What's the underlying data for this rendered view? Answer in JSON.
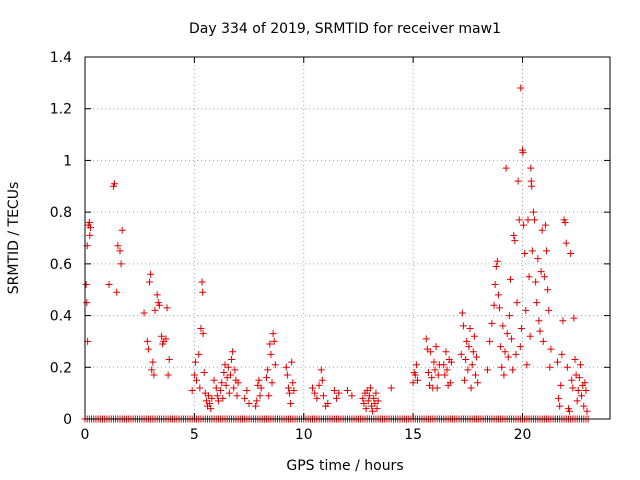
{
  "chart_data": {
    "type": "scatter",
    "title": "Day 334 of 2019, SRMTID for receiver maw1",
    "xlabel": "GPS time / hours",
    "ylabel": "SRMTID / TECUs",
    "xlim": [
      0,
      24
    ],
    "ylim": [
      0,
      1.4
    ],
    "x_ticks": [
      0,
      5,
      10,
      15,
      20
    ],
    "y_ticks": [
      0,
      0.2,
      0.4,
      0.6,
      0.8,
      1,
      1.2,
      1.4
    ],
    "x_tick_labels": [
      "0",
      "5",
      "10",
      "15",
      "20"
    ],
    "y_tick_labels": [
      "0",
      "0.2",
      "0.4",
      "0.6",
      "0.8",
      "1",
      "1.2",
      "1.4"
    ],
    "grid": true,
    "marker": "+",
    "series": [
      {
        "name": "SRMTID",
        "color": "#e00000",
        "points": [
          [
            0.05,
            0.52
          ],
          [
            0.08,
            0.45
          ],
          [
            0.1,
            0.67
          ],
          [
            0.12,
            0.3
          ],
          [
            0.15,
            0.75
          ],
          [
            0.2,
            0.76
          ],
          [
            0.22,
            0.71
          ],
          [
            0.25,
            0.74
          ],
          [
            1.1,
            0.52
          ],
          [
            1.3,
            0.9
          ],
          [
            1.35,
            0.91
          ],
          [
            1.45,
            0.49
          ],
          [
            1.5,
            0.67
          ],
          [
            1.6,
            0.65
          ],
          [
            1.65,
            0.6
          ],
          [
            1.7,
            0.73
          ],
          [
            2.7,
            0.41
          ],
          [
            2.85,
            0.3
          ],
          [
            2.9,
            0.27
          ],
          [
            2.95,
            0.53
          ],
          [
            3.0,
            0.56
          ],
          [
            3.05,
            0.19
          ],
          [
            3.1,
            0.22
          ],
          [
            3.15,
            0.17
          ],
          [
            3.2,
            0.42
          ],
          [
            3.3,
            0.48
          ],
          [
            3.35,
            0.45
          ],
          [
            3.4,
            0.44
          ],
          [
            3.5,
            0.32
          ],
          [
            3.55,
            0.29
          ],
          [
            3.6,
            0.3
          ],
          [
            3.7,
            0.31
          ],
          [
            3.75,
            0.43
          ],
          [
            3.8,
            0.17
          ],
          [
            3.85,
            0.23
          ],
          [
            4.9,
            0.11
          ],
          [
            5.0,
            0.17
          ],
          [
            5.05,
            0.22
          ],
          [
            5.1,
            0.15
          ],
          [
            5.2,
            0.25
          ],
          [
            5.25,
            0.12
          ],
          [
            5.3,
            0.35
          ],
          [
            5.35,
            0.53
          ],
          [
            5.38,
            0.49
          ],
          [
            5.4,
            0.33
          ],
          [
            5.45,
            0.18
          ],
          [
            5.5,
            0.1
          ],
          [
            5.55,
            0.07
          ],
          [
            5.6,
            0.05
          ],
          [
            5.65,
            0.09
          ],
          [
            5.7,
            0.06
          ],
          [
            5.75,
            0.04
          ],
          [
            5.8,
            0.08
          ],
          [
            5.9,
            0.15
          ],
          [
            6.0,
            0.12
          ],
          [
            6.05,
            0.09
          ],
          [
            6.1,
            0.07
          ],
          [
            6.2,
            0.11
          ],
          [
            6.25,
            0.14
          ],
          [
            6.3,
            0.08
          ],
          [
            6.35,
            0.18
          ],
          [
            6.4,
            0.21
          ],
          [
            6.45,
            0.13
          ],
          [
            6.5,
            0.16
          ],
          [
            6.55,
            0.2
          ],
          [
            6.6,
            0.1
          ],
          [
            6.65,
            0.17
          ],
          [
            6.7,
            0.23
          ],
          [
            6.75,
            0.26
          ],
          [
            6.8,
            0.12
          ],
          [
            6.85,
            0.19
          ],
          [
            6.9,
            0.15
          ],
          [
            6.95,
            0.09
          ],
          [
            7.0,
            0.14
          ],
          [
            7.3,
            0.08
          ],
          [
            7.4,
            0.11
          ],
          [
            7.5,
            0.06
          ],
          [
            7.8,
            0.05
          ],
          [
            7.85,
            0.07
          ],
          [
            7.9,
            0.13
          ],
          [
            7.95,
            0.15
          ],
          [
            8.0,
            0.09
          ],
          [
            8.05,
            0.12
          ],
          [
            8.3,
            0.16
          ],
          [
            8.35,
            0.19
          ],
          [
            8.4,
            0.09
          ],
          [
            8.45,
            0.29
          ],
          [
            8.5,
            0.25
          ],
          [
            8.55,
            0.14
          ],
          [
            8.6,
            0.33
          ],
          [
            8.65,
            0.3
          ],
          [
            8.7,
            0.21
          ],
          [
            9.2,
            0.2
          ],
          [
            9.25,
            0.17
          ],
          [
            9.3,
            0.12
          ],
          [
            9.35,
            0.1
          ],
          [
            9.4,
            0.06
          ],
          [
            9.45,
            0.22
          ],
          [
            9.5,
            0.14
          ],
          [
            9.55,
            0.11
          ],
          [
            10.4,
            0.12
          ],
          [
            10.5,
            0.1
          ],
          [
            10.6,
            0.08
          ],
          [
            10.7,
            0.13
          ],
          [
            10.8,
            0.19
          ],
          [
            10.85,
            0.15
          ],
          [
            10.9,
            0.09
          ],
          [
            11.0,
            0.05
          ],
          [
            11.1,
            0.06
          ],
          [
            11.4,
            0.11
          ],
          [
            11.5,
            0.08
          ],
          [
            11.6,
            0.1
          ],
          [
            12.0,
            0.11
          ],
          [
            12.2,
            0.09
          ],
          [
            12.7,
            0.08
          ],
          [
            12.75,
            0.06
          ],
          [
            12.8,
            0.1
          ],
          [
            12.85,
            0.04
          ],
          [
            12.9,
            0.11
          ],
          [
            12.95,
            0.07
          ],
          [
            13.0,
            0.09
          ],
          [
            13.05,
            0.12
          ],
          [
            13.1,
            0.05
          ],
          [
            13.15,
            0.03
          ],
          [
            13.2,
            0.08
          ],
          [
            13.25,
            0.06
          ],
          [
            13.3,
            0.1
          ],
          [
            13.35,
            0.04
          ],
          [
            13.4,
            0.07
          ],
          [
            14.0,
            0.12
          ],
          [
            15.0,
            0.14
          ],
          [
            15.05,
            0.18
          ],
          [
            15.1,
            0.17
          ],
          [
            15.15,
            0.21
          ],
          [
            15.2,
            0.15
          ],
          [
            15.6,
            0.31
          ],
          [
            15.65,
            0.27
          ],
          [
            15.7,
            0.18
          ],
          [
            15.75,
            0.13
          ],
          [
            15.8,
            0.26
          ],
          [
            15.85,
            0.16
          ],
          [
            15.9,
            0.12
          ],
          [
            15.95,
            0.22
          ],
          [
            16.0,
            0.19
          ],
          [
            16.05,
            0.28
          ],
          [
            16.1,
            0.12
          ],
          [
            16.15,
            0.17
          ],
          [
            16.2,
            0.21
          ],
          [
            16.4,
            0.21
          ],
          [
            16.45,
            0.17
          ],
          [
            16.5,
            0.26
          ],
          [
            16.55,
            0.19
          ],
          [
            16.6,
            0.13
          ],
          [
            16.65,
            0.23
          ],
          [
            16.7,
            0.14
          ],
          [
            16.75,
            0.22
          ],
          [
            17.2,
            0.25
          ],
          [
            17.25,
            0.41
          ],
          [
            17.3,
            0.36
          ],
          [
            17.35,
            0.15
          ],
          [
            17.4,
            0.23
          ],
          [
            17.45,
            0.3
          ],
          [
            17.5,
            0.19
          ],
          [
            17.55,
            0.28
          ],
          [
            17.6,
            0.35
          ],
          [
            17.65,
            0.12
          ],
          [
            17.7,
            0.21
          ],
          [
            17.75,
            0.26
          ],
          [
            17.8,
            0.32
          ],
          [
            17.85,
            0.17
          ],
          [
            17.9,
            0.24
          ],
          [
            17.95,
            0.14
          ],
          [
            18.4,
            0.19
          ],
          [
            18.5,
            0.3
          ],
          [
            18.6,
            0.37
          ],
          [
            18.7,
            0.44
          ],
          [
            18.75,
            0.52
          ],
          [
            18.8,
            0.59
          ],
          [
            18.85,
            0.61
          ],
          [
            18.9,
            0.48
          ],
          [
            18.95,
            0.43
          ],
          [
            19.0,
            0.28
          ],
          [
            19.05,
            0.2
          ],
          [
            19.1,
            0.36
          ],
          [
            19.15,
            0.17
          ],
          [
            19.2,
            0.26
          ],
          [
            19.25,
            0.97
          ],
          [
            19.3,
            0.33
          ],
          [
            19.35,
            0.24
          ],
          [
            19.4,
            0.4
          ],
          [
            19.45,
            0.54
          ],
          [
            19.5,
            0.31
          ],
          [
            19.55,
            0.19
          ],
          [
            19.6,
            0.71
          ],
          [
            19.65,
            0.69
          ],
          [
            19.7,
            0.25
          ],
          [
            19.75,
            0.45
          ],
          [
            19.8,
            0.92
          ],
          [
            19.85,
            0.77
          ],
          [
            19.9,
            0.28
          ],
          [
            19.92,
            1.28
          ],
          [
            19.95,
            0.35
          ],
          [
            20.0,
            1.04
          ],
          [
            20.02,
            1.03
          ],
          [
            20.05,
            0.75
          ],
          [
            20.1,
            0.64
          ],
          [
            20.15,
            0.42
          ],
          [
            20.2,
            0.21
          ],
          [
            20.25,
            0.77
          ],
          [
            20.3,
            0.55
          ],
          [
            20.35,
            0.32
          ],
          [
            20.38,
            0.97
          ],
          [
            20.4,
            0.92
          ],
          [
            20.42,
            0.9
          ],
          [
            20.45,
            0.65
          ],
          [
            20.5,
            0.8
          ],
          [
            20.55,
            0.77
          ],
          [
            20.6,
            0.53
          ],
          [
            20.65,
            0.45
          ],
          [
            20.7,
            0.62
          ],
          [
            20.75,
            0.38
          ],
          [
            20.8,
            0.34
          ],
          [
            20.85,
            0.57
          ],
          [
            20.9,
            0.73
          ],
          [
            20.95,
            0.3
          ],
          [
            21.0,
            0.55
          ],
          [
            21.05,
            0.75
          ],
          [
            21.1,
            0.65
          ],
          [
            21.15,
            0.5
          ],
          [
            21.2,
            0.42
          ],
          [
            21.25,
            0.2
          ],
          [
            21.3,
            0.27
          ],
          [
            21.6,
            0.22
          ],
          [
            21.65,
            0.08
          ],
          [
            21.7,
            0.05
          ],
          [
            21.75,
            0.13
          ],
          [
            21.8,
            0.25
          ],
          [
            21.85,
            0.38
          ],
          [
            21.9,
            0.77
          ],
          [
            21.95,
            0.76
          ],
          [
            22.0,
            0.68
          ],
          [
            22.05,
            0.2
          ],
          [
            22.1,
            0.04
          ],
          [
            22.15,
            0.03
          ],
          [
            22.2,
            0.64
          ],
          [
            22.25,
            0.15
          ],
          [
            22.3,
            0.12
          ],
          [
            22.35,
            0.39
          ],
          [
            22.4,
            0.23
          ],
          [
            22.45,
            0.17
          ],
          [
            22.5,
            0.07
          ],
          [
            22.55,
            0.11
          ],
          [
            22.6,
            0.16
          ],
          [
            22.65,
            0.21
          ],
          [
            22.7,
            0.09
          ],
          [
            22.75,
            0.13
          ],
          [
            22.8,
            0.05
          ],
          [
            22.85,
            0.14
          ],
          [
            22.9,
            0.11
          ],
          [
            22.95,
            0.03
          ]
        ]
      }
    ],
    "zero_band": [
      0.0,
      23.0
    ]
  }
}
